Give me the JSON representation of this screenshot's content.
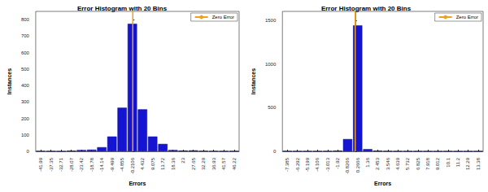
{
  "chart_data": [
    {
      "type": "bar",
      "title": "Error Histogram with 20 Bins",
      "x_label": "Errors",
      "y_label": "Instances",
      "x": [
        -41.99,
        -37.35,
        -32.71,
        -28.07,
        -23.42,
        -18.78,
        -14.14,
        -9.499,
        -4.855,
        -0.2106,
        4.432,
        9.075,
        13.72,
        18.36,
        23,
        27.65,
        32.29,
        36.93,
        41.57,
        46.22
      ],
      "values": [
        2,
        1,
        0,
        4,
        8,
        10,
        25,
        90,
        265,
        775,
        255,
        90,
        45,
        8,
        5,
        6,
        3,
        2,
        1,
        2
      ],
      "color": "#1414d2",
      "xlim": [
        -44.31,
        48.54
      ],
      "xticks": [
        -41.99,
        -37.35,
        -32.71,
        -28.07,
        -23.42,
        -18.78,
        -14.14,
        -9.499,
        -4.855,
        -0.2106,
        4.432,
        9.075,
        13.72,
        18.36,
        23,
        27.65,
        32.29,
        36.93,
        41.57,
        46.22
      ],
      "ylim": [
        0,
        850
      ],
      "yticks": [
        0,
        100,
        200,
        300,
        400,
        500,
        600,
        700,
        800
      ],
      "reference_line": {
        "name": "Zero Error",
        "x": 0,
        "color": "#f0a020"
      },
      "legend": "top-right",
      "grid": false
    },
    {
      "type": "bar",
      "title": "Error Histogram with 20 Bins",
      "x_label": "Errors",
      "y_label": "Instances",
      "x": [
        -7.385,
        -6.292,
        -5.199,
        -4.106,
        -3.013,
        -1.92,
        -0.8266,
        0.2666,
        1.36,
        2.453,
        3.546,
        4.639,
        5.732,
        6.825,
        7.918,
        9.012,
        10.1,
        11.2,
        12.29,
        13.38
      ],
      "values": [
        3,
        1,
        1,
        2,
        3,
        8,
        140,
        1440,
        25,
        8,
        4,
        2,
        1,
        1,
        1,
        0,
        1,
        0,
        0,
        1
      ],
      "color": "#1414d2",
      "xlim": [
        -7.93,
        13.93
      ],
      "xticks": [
        -7.385,
        -6.292,
        -5.199,
        -4.106,
        -3.013,
        -1.92,
        -0.8266,
        0.2666,
        1.36,
        2.453,
        3.546,
        4.639,
        5.732,
        6.825,
        7.918,
        9.012,
        10.1,
        11.2,
        12.29,
        13.38
      ],
      "ylim": [
        0,
        1600
      ],
      "yticks": [
        0,
        500,
        1000,
        1500
      ],
      "reference_line": {
        "name": "Zero Error",
        "x": 0,
        "color": "#f0a020"
      },
      "legend": "top-right",
      "grid": false
    }
  ]
}
